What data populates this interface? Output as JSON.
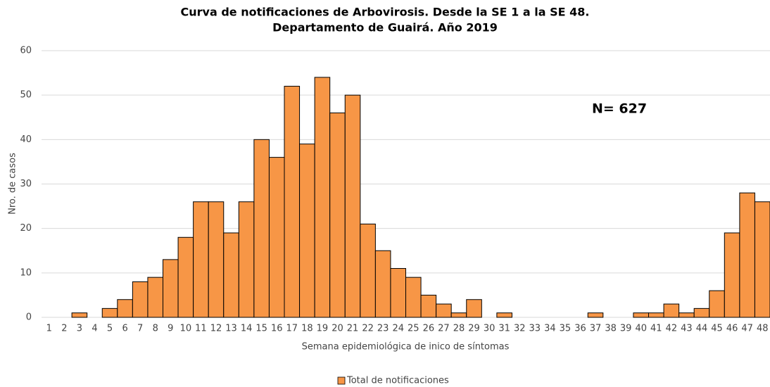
{
  "chart_data": {
    "type": "bar",
    "title": "Curva de notificaciones de Arbovirosis. Desde la SE 1 a la SE 48.",
    "subtitle": "Departamento de Guairá. Año 2019",
    "annotation": "N= 627",
    "x_label": "Semana epidemiológica de inico de síntomas",
    "y_label": "Nro. de casos",
    "categories": [
      "1",
      "2",
      "3",
      "4",
      "5",
      "6",
      "7",
      "8",
      "9",
      "10",
      "11",
      "12",
      "13",
      "14",
      "15",
      "16",
      "17",
      "18",
      "19",
      "20",
      "21",
      "22",
      "23",
      "24",
      "25",
      "26",
      "27",
      "28",
      "29",
      "30",
      "31",
      "32",
      "33",
      "34",
      "35",
      "36",
      "37",
      "38",
      "39",
      "40",
      "41",
      "42",
      "43",
      "44",
      "45",
      "46",
      "47",
      "48"
    ],
    "series": [
      {
        "name": "Total de notificaciones",
        "color": "#f79646",
        "values": [
          0,
          0,
          1,
          0,
          2,
          4,
          8,
          9,
          13,
          18,
          26,
          26,
          19,
          26,
          40,
          36,
          52,
          39,
          54,
          46,
          50,
          21,
          15,
          11,
          9,
          5,
          3,
          1,
          4,
          0,
          1,
          0,
          0,
          0,
          0,
          0,
          1,
          0,
          0,
          1,
          1,
          3,
          1,
          2,
          6,
          19,
          28,
          26
        ]
      }
    ],
    "ylim": [
      0,
      60
    ],
    "yticks": [
      0,
      10,
      20,
      30,
      40,
      50,
      60
    ],
    "grid": true,
    "legend": "bottom"
  }
}
